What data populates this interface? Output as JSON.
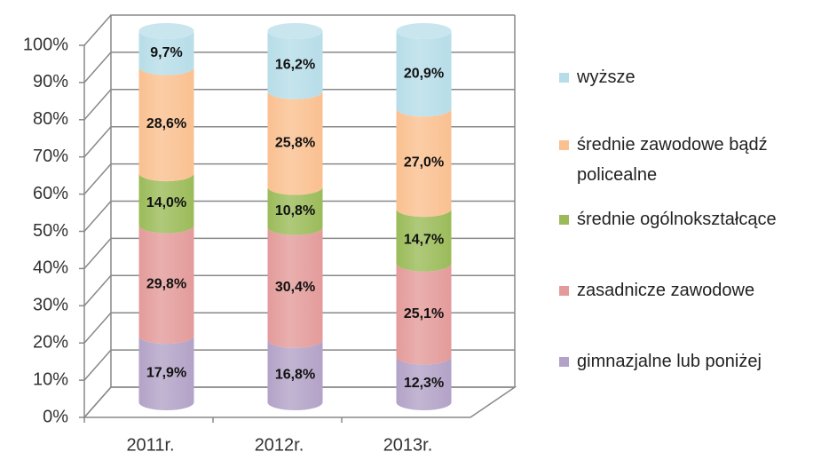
{
  "chart_data": {
    "type": "stacked-cylinder",
    "categories": [
      "2011r.",
      "2012r.",
      "2013r."
    ],
    "ylim": [
      0,
      100
    ],
    "yticks": [
      {
        "value": 0,
        "label": "0%"
      },
      {
        "value": 10,
        "label": "10%"
      },
      {
        "value": 20,
        "label": "20%"
      },
      {
        "value": 30,
        "label": "30%"
      },
      {
        "value": 40,
        "label": "40%"
      },
      {
        "value": 50,
        "label": "50%"
      },
      {
        "value": 60,
        "label": "60%"
      },
      {
        "value": 70,
        "label": "70%"
      },
      {
        "value": 80,
        "label": "80%"
      },
      {
        "value": 90,
        "label": "90%"
      },
      {
        "value": 100,
        "label": "100%"
      }
    ],
    "grid": true,
    "legend": "right",
    "series": [
      {
        "name": "gimnazjalne lub poniżej",
        "color": "#b3a2c7",
        "values": [
          17.9,
          16.8,
          12.3
        ],
        "value_labels": [
          "17,9%",
          "16,8%",
          "12,3%"
        ]
      },
      {
        "name": "zasadnicze zawodowe",
        "color": "#e39b9a",
        "values": [
          29.8,
          30.4,
          25.1
        ],
        "value_labels": [
          "29,8%",
          "30,4%",
          "25,1%"
        ]
      },
      {
        "name": "średnie ogólnokształcące",
        "color": "#9bbb59",
        "values": [
          14.0,
          10.8,
          14.7
        ],
        "value_labels": [
          "14,0%",
          "10,8%",
          "14,7%"
        ]
      },
      {
        "name": "średnie zawodowe bądź policealne",
        "color": "#fac090",
        "values": [
          28.6,
          25.8,
          27.0
        ],
        "value_labels": [
          "28,6%",
          "25,8%",
          "27,0%"
        ]
      },
      {
        "name": "wyższe",
        "color": "#b7dde8",
        "values": [
          9.7,
          16.2,
          20.9
        ],
        "value_labels": [
          "9,7%",
          "16,2%",
          "20,9%"
        ]
      }
    ]
  }
}
